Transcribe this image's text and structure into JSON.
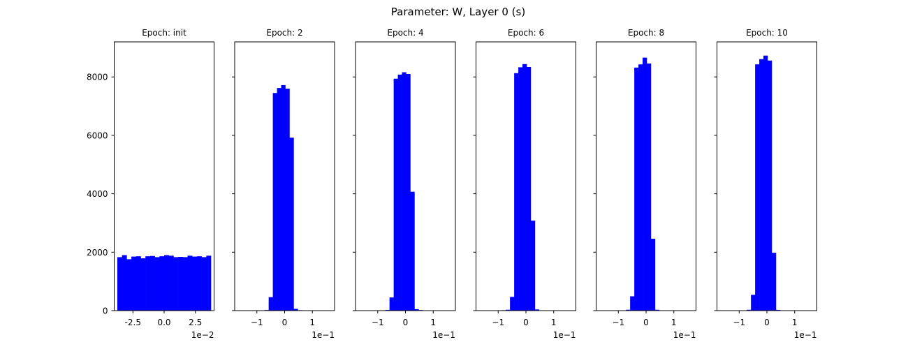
{
  "figure_title": "Parameter: W, Layer 0 (s)",
  "chart_data": [
    {
      "type": "bar",
      "title": "Epoch: init",
      "xlim": [
        -0.04,
        0.04
      ],
      "ylim": [
        0,
        9200
      ],
      "x_ticks": [
        -0.025,
        0,
        0.025
      ],
      "x_tick_labels": [
        "-2.5",
        "0.0",
        "2.5"
      ],
      "x_offset_label": "1e−2",
      "y_ticks": [
        0,
        2000,
        4000,
        6000,
        8000
      ],
      "y_tick_labels": [
        "0",
        "2000",
        "4000",
        "6000",
        "8000"
      ],
      "bin_edges": [
        -0.0375,
        -0.03375,
        -0.03,
        -0.02625,
        -0.0225,
        -0.01875,
        -0.015,
        -0.01125,
        -0.0075,
        -0.00375,
        0,
        0.00375,
        0.0075,
        0.01125,
        0.015,
        0.01875,
        0.0225,
        0.02625,
        0.03,
        0.03375,
        0.0375
      ],
      "values": [
        1830,
        1900,
        1760,
        1850,
        1860,
        1790,
        1860,
        1870,
        1830,
        1860,
        1900,
        1880,
        1830,
        1840,
        1830,
        1880,
        1850,
        1860,
        1830,
        1880
      ],
      "color": "#0000ff"
    },
    {
      "type": "bar",
      "title": "Epoch: 2",
      "xlim": [
        -0.18,
        0.18
      ],
      "ylim": [
        0,
        9200
      ],
      "x_ticks": [
        -0.1,
        0,
        0.1
      ],
      "x_tick_labels": [
        "−1",
        "0",
        "1"
      ],
      "x_offset_label": "1e−1",
      "y_ticks": [
        0,
        2000,
        4000,
        6000,
        8000
      ],
      "y_tick_labels": [
        "",
        "",
        "",
        "",
        ""
      ],
      "bin_edges": [
        -0.1625,
        -0.1475,
        -0.1325,
        -0.1175,
        -0.1025,
        -0.0875,
        -0.0725,
        -0.0575,
        -0.0425,
        -0.0275,
        -0.0125,
        0.0025,
        0.0175,
        0.0325,
        0.0475,
        0.0625,
        0.0775,
        0.0925,
        0.1075,
        0.1225,
        0.1375
      ],
      "values": [
        0,
        0,
        0,
        0,
        0,
        5,
        20,
        460,
        7450,
        7620,
        7720,
        7600,
        5920,
        60,
        15,
        0,
        0,
        0,
        0,
        3
      ],
      "color": "#0000ff"
    },
    {
      "type": "bar",
      "title": "Epoch: 4",
      "xlim": [
        -0.18,
        0.18
      ],
      "ylim": [
        0,
        9200
      ],
      "x_ticks": [
        -0.1,
        0,
        0.1
      ],
      "x_tick_labels": [
        "−1",
        "0",
        "1"
      ],
      "x_offset_label": "1e−1",
      "y_ticks": [
        0,
        2000,
        4000,
        6000,
        8000
      ],
      "y_tick_labels": [
        "",
        "",
        "",
        "",
        ""
      ],
      "bin_edges": [
        -0.1625,
        -0.1475,
        -0.1325,
        -0.1175,
        -0.1025,
        -0.0875,
        -0.0725,
        -0.0575,
        -0.0425,
        -0.0275,
        -0.0125,
        0.0025,
        0.0175,
        0.0325,
        0.0475,
        0.0625,
        0.0775,
        0.0925,
        0.1075,
        0.1225,
        0.1375
      ],
      "values": [
        0,
        0,
        0,
        0,
        0,
        10,
        25,
        450,
        7940,
        8080,
        8160,
        8100,
        4070,
        50,
        20,
        0,
        0,
        0,
        0,
        3
      ],
      "color": "#0000ff"
    },
    {
      "type": "bar",
      "title": "Epoch: 6",
      "xlim": [
        -0.18,
        0.18
      ],
      "ylim": [
        0,
        9200
      ],
      "x_ticks": [
        -0.1,
        0,
        0.1
      ],
      "x_tick_labels": [
        "−1",
        "0",
        "1"
      ],
      "x_offset_label": "1e−1",
      "y_ticks": [
        0,
        2000,
        4000,
        6000,
        8000
      ],
      "y_tick_labels": [
        "",
        "",
        "",
        "",
        ""
      ],
      "bin_edges": [
        -0.1625,
        -0.1475,
        -0.1325,
        -0.1175,
        -0.1025,
        -0.0875,
        -0.0725,
        -0.0575,
        -0.0425,
        -0.0275,
        -0.0125,
        0.0025,
        0.0175,
        0.0325,
        0.0475,
        0.0625,
        0.0775,
        0.0925,
        0.1075,
        0.1225,
        0.1375
      ],
      "values": [
        0,
        0,
        0,
        0,
        0,
        15,
        30,
        470,
        8130,
        8330,
        8440,
        8340,
        3080,
        40,
        10,
        0,
        0,
        0,
        0,
        3
      ],
      "color": "#0000ff"
    },
    {
      "type": "bar",
      "title": "Epoch: 8",
      "xlim": [
        -0.18,
        0.18
      ],
      "ylim": [
        0,
        9200
      ],
      "x_ticks": [
        -0.1,
        0,
        0.1
      ],
      "x_tick_labels": [
        "−1",
        "0",
        "1"
      ],
      "x_offset_label": "1e−1",
      "y_ticks": [
        0,
        2000,
        4000,
        6000,
        8000
      ],
      "y_tick_labels": [
        "",
        "",
        "",
        "",
        ""
      ],
      "bin_edges": [
        -0.1625,
        -0.1475,
        -0.1325,
        -0.1175,
        -0.1025,
        -0.0875,
        -0.0725,
        -0.0575,
        -0.0425,
        -0.0275,
        -0.0125,
        0.0025,
        0.0175,
        0.0325,
        0.0475,
        0.0625,
        0.0775,
        0.0925,
        0.1075,
        0.1225,
        0.1375
      ],
      "values": [
        0,
        0,
        0,
        0,
        0,
        10,
        30,
        490,
        8320,
        8430,
        8660,
        8460,
        2460,
        30,
        10,
        0,
        0,
        0,
        0,
        3
      ],
      "color": "#0000ff"
    },
    {
      "type": "bar",
      "title": "Epoch: 10",
      "xlim": [
        -0.18,
        0.18
      ],
      "ylim": [
        0,
        9200
      ],
      "x_ticks": [
        -0.1,
        0,
        0.1
      ],
      "x_tick_labels": [
        "−1",
        "0",
        "1"
      ],
      "x_offset_label": "1e−1",
      "y_ticks": [
        0,
        2000,
        4000,
        6000,
        8000
      ],
      "y_tick_labels": [
        "",
        "",
        "",
        "",
        ""
      ],
      "bin_edges": [
        -0.1625,
        -0.1475,
        -0.1325,
        -0.1175,
        -0.1025,
        -0.0875,
        -0.0725,
        -0.0575,
        -0.0425,
        -0.0275,
        -0.0125,
        0.0025,
        0.0175,
        0.0325,
        0.0475,
        0.0625,
        0.0775,
        0.0925,
        0.1075,
        0.1225,
        0.1375
      ],
      "values": [
        0,
        0,
        0,
        0,
        0,
        10,
        30,
        540,
        8430,
        8610,
        8730,
        8560,
        1980,
        25,
        10,
        0,
        0,
        0,
        0,
        3
      ],
      "color": "#0000ff"
    }
  ]
}
